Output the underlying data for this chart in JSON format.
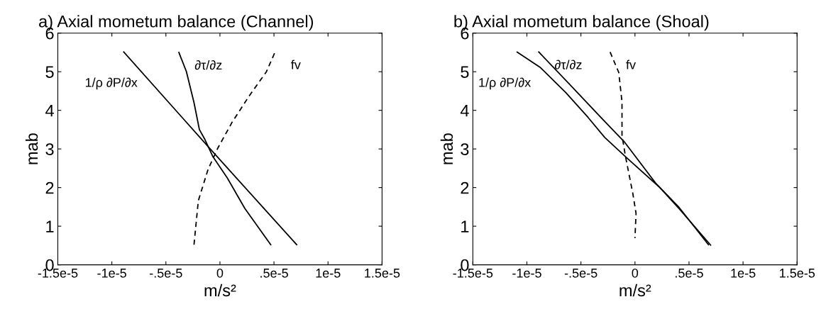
{
  "chart_data": [
    {
      "type": "line",
      "title": "a) Axial mometum balance (Channel)",
      "xlabel": "m/s²",
      "ylabel": "mab",
      "series": [
        {
          "name": "1/ρ ∂P/∂x",
          "color": "#000000",
          "line_style": "solid",
          "x": [
            -8.9e-06,
            -9e-07,
            7.1e-06
          ],
          "values": [
            5.51,
            3.0,
            0.52
          ]
        },
        {
          "name": "∂τ/∂z",
          "color": "#000000",
          "line_style": "solid",
          "x": [
            -3.8e-06,
            -3.1e-06,
            -2.4e-06,
            -1.9e-06,
            -1.4e-06,
            -6.5e-07,
            7e-07,
            2.3e-06,
            4.7e-06
          ],
          "values": [
            5.5,
            5.0,
            4.2,
            3.5,
            3.25,
            2.8,
            2.24,
            1.46,
            0.52
          ]
        },
        {
          "name": "fv",
          "color": "#000000",
          "line_style": "dashed",
          "x": [
            -2.4e-06,
            -2e-06,
            -1.1e-06,
            -2e-07,
            1.1e-06,
            2.7e-06,
            4.3e-06,
            5.1e-06
          ],
          "values": [
            0.52,
            1.66,
            2.47,
            3.02,
            3.68,
            4.37,
            5.0,
            5.51
          ]
        }
      ],
      "xlim": [
        -1.5e-05,
        1.5e-05
      ],
      "xticks": [
        {
          "value": -1.5e-05,
          "label": "-1.5e-5"
        },
        {
          "value": -1e-05,
          "label": "-1e-5"
        },
        {
          "value": -5e-06,
          "label": "-.5e-5"
        },
        0,
        {
          "value": 5e-06,
          "label": ".5e-5"
        },
        {
          "value": 1e-05,
          "label": "1e-5"
        },
        {
          "value": 1.5e-05,
          "label": "1.5e-5"
        }
      ],
      "ylim": [
        0,
        6
      ],
      "yticks": [
        0,
        1,
        2,
        3,
        4,
        5,
        6
      ],
      "grid": false,
      "legend": false
    },
    {
      "type": "line",
      "title": "b) Axial mometum balance (Shoal)",
      "xlabel": "m/s²",
      "ylabel": "mab",
      "series": [
        {
          "name": "1/ρ ∂P/∂x",
          "color": "#000000",
          "line_style": "solid",
          "x": [
            -1.09e-05,
            -8.8e-06,
            -6.4e-06,
            -4.35e-06,
            -2.8e-06,
            -8e-07,
            2.3e-06,
            4.1e-06,
            7e-06
          ],
          "values": [
            5.51,
            5.12,
            4.46,
            3.82,
            3.3,
            2.78,
            2.0,
            1.45,
            0.51
          ]
        },
        {
          "name": "∂τ/∂z",
          "color": "#000000",
          "line_style": "solid",
          "x": [
            -8.9e-06,
            -6.1e-06,
            -3e-06,
            -1e-06,
            1.9e-06,
            4.1e-06,
            6.8e-06
          ],
          "values": [
            5.51,
            4.69,
            3.77,
            3.19,
            2.12,
            1.48,
            0.52
          ]
        },
        {
          "name": "fv",
          "color": "#000000",
          "line_style": "dashed",
          "x": [
            -2.3e-06,
            -1.5e-06,
            -1.2e-06,
            -1.2e-06,
            -9e-07,
            -2e-07,
            1e-07,
            0.0
          ],
          "values": [
            5.51,
            4.98,
            4.22,
            3.36,
            2.84,
            1.85,
            1.33,
            0.69
          ]
        }
      ],
      "xlim": [
        -1.5e-05,
        1.5e-05
      ],
      "xticks": [
        {
          "value": -1.5e-05,
          "label": "-1.5e-5"
        },
        {
          "value": -1e-05,
          "label": "-1e-5"
        },
        {
          "value": -5e-06,
          "label": "-.5e-5"
        },
        0,
        {
          "value": 5e-06,
          "label": ".5e-5"
        },
        {
          "value": 1e-05,
          "label": "1e-5"
        },
        {
          "value": 1.5e-05,
          "label": "1.5e-5"
        }
      ],
      "ylim": [
        0,
        6
      ],
      "yticks": [
        0,
        1,
        2,
        3,
        4,
        5,
        6
      ],
      "grid": false,
      "legend": false
    }
  ]
}
